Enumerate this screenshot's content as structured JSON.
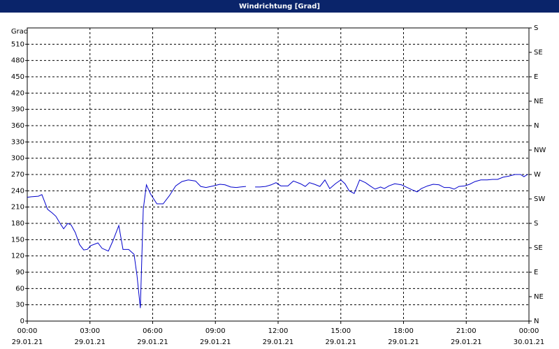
{
  "chart_data": {
    "type": "line",
    "title": "Windrichtung [Grad]",
    "y_label": "Grad",
    "x": [
      0,
      0.2,
      0.53,
      0.7,
      0.97,
      1.2,
      1.37,
      1.57,
      1.74,
      1.94,
      2.1,
      2.3,
      2.5,
      2.7,
      2.87,
      3.04,
      3.38,
      3.58,
      3.88,
      4.1,
      4.38,
      4.58,
      4.85,
      5.11,
      5.25,
      5.41,
      5.55,
      5.7,
      5.9,
      6.2,
      6.5,
      6.8,
      7.1,
      7.4,
      7.7,
      8.05,
      8.3,
      8.55,
      8.9,
      9.22,
      9.46,
      9.73,
      10.0,
      10.2,
      10.46,
      10.7,
      10.9,
      11.13,
      11.4,
      11.67,
      11.9,
      12.13,
      12.47,
      12.73,
      13.07,
      13.3,
      13.5,
      13.74,
      14.0,
      14.24,
      14.47,
      14.74,
      15.0,
      15.2,
      15.4,
      15.64,
      15.9,
      16.18,
      16.4,
      16.64,
      16.9,
      17.08,
      17.3,
      17.58,
      17.9,
      18.18,
      18.4,
      18.65,
      18.85,
      19.15,
      19.42,
      19.7,
      19.95,
      20.2,
      20.42,
      20.65,
      20.92,
      21.16,
      21.42,
      21.7,
      22.0,
      22.26,
      22.5,
      22.76,
      23.03,
      23.33,
      23.6,
      23.76,
      23.93
    ],
    "series": [
      {
        "name": "Windrichtung",
        "color": "#0000cc",
        "values": [
          228,
          229,
          230,
          233,
          206,
          199,
          193,
          180,
          170,
          180,
          177,
          163,
          141,
          131,
          132,
          139,
          144,
          134,
          129,
          148,
          176,
          132,
          132,
          123,
          84,
          24,
          206,
          251,
          234,
          216,
          216,
          231,
          249,
          257,
          260,
          258,
          248,
          246,
          249,
          252,
          251,
          247,
          246,
          247,
          248,
          null,
          247,
          247,
          248,
          251,
          255,
          249,
          249,
          258,
          253,
          248,
          255,
          252,
          248,
          260,
          244,
          253,
          260,
          253,
          240,
          235,
          260,
          255,
          249,
          243,
          247,
          244,
          249,
          253,
          251,
          246,
          242,
          238,
          244,
          249,
          252,
          251,
          246,
          246,
          243,
          248,
          249,
          252,
          257,
          260,
          260,
          261,
          261,
          265,
          267,
          270,
          270,
          266,
          270
        ]
      }
    ],
    "xlim": [
      0,
      24
    ],
    "xticks": [
      {
        "value": 0,
        "label": "00:00"
      },
      {
        "value": 3,
        "label": "03:00"
      },
      {
        "value": 6,
        "label": "06:00"
      },
      {
        "value": 9,
        "label": "09:00"
      },
      {
        "value": 12,
        "label": "12:00"
      },
      {
        "value": 15,
        "label": "15:00"
      },
      {
        "value": 18,
        "label": "18:00"
      },
      {
        "value": 21,
        "label": "21:00"
      },
      {
        "value": 24,
        "label": "00:00"
      }
    ],
    "xtick_dates": [
      "29.01.21",
      "29.01.21",
      "29.01.21",
      "29.01.21",
      "29.01.21",
      "29.01.21",
      "29.01.21",
      "29.01.21",
      "30.01.21"
    ],
    "ylim": [
      0,
      540
    ],
    "yticks": [
      0,
      30,
      60,
      90,
      120,
      150,
      180,
      210,
      240,
      270,
      300,
      330,
      360,
      390,
      420,
      450,
      480,
      510
    ],
    "y2lim": [
      0,
      540
    ],
    "y2ticks": [
      {
        "value": 0,
        "label": "N"
      },
      {
        "value": 45,
        "label": "NE"
      },
      {
        "value": 90,
        "label": "E"
      },
      {
        "value": 135,
        "label": "SE"
      },
      {
        "value": 180,
        "label": "S"
      },
      {
        "value": 225,
        "label": "SW"
      },
      {
        "value": 270,
        "label": "W"
      },
      {
        "value": 315,
        "label": "NW"
      },
      {
        "value": 360,
        "label": "N"
      },
      {
        "value": 405,
        "label": "NE"
      },
      {
        "value": 450,
        "label": "E"
      },
      {
        "value": 495,
        "label": "SE"
      },
      {
        "value": 540,
        "label": "S"
      }
    ],
    "grid": true
  }
}
